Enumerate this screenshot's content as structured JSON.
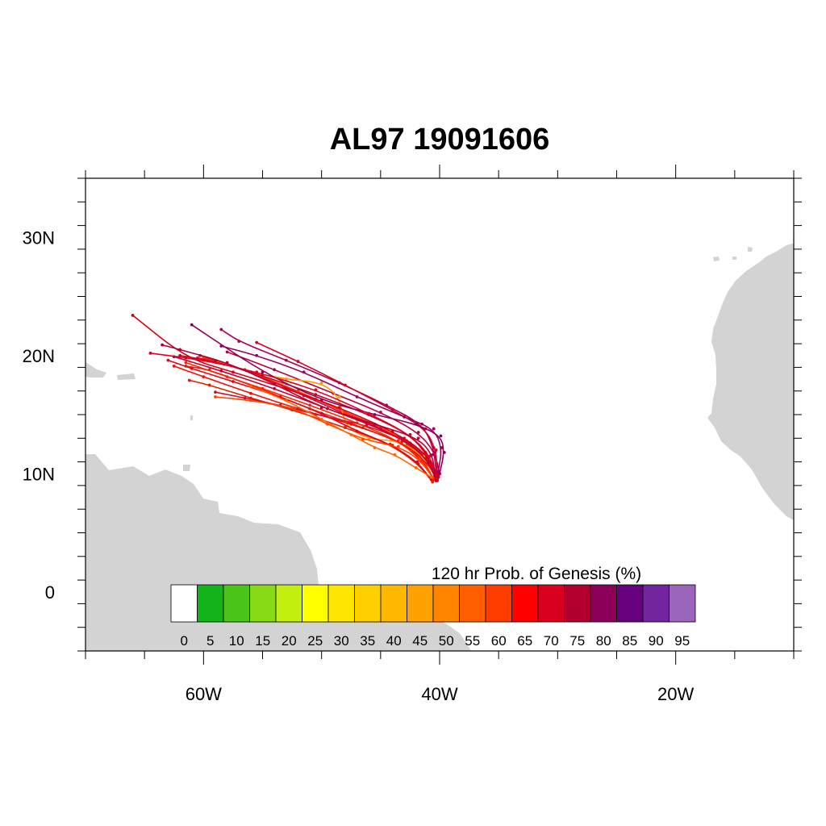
{
  "title": "AL97 19091606",
  "map": {
    "lon_range": [
      -70,
      -10
    ],
    "lat_range": [
      -5,
      35
    ],
    "x_ticks": [
      {
        "lon": -60,
        "label": "60W"
      },
      {
        "lon": -40,
        "label": "40W"
      },
      {
        "lon": -20,
        "label": "20W"
      }
    ],
    "y_ticks": [
      {
        "lat": 30,
        "label": "30N"
      },
      {
        "lat": 20,
        "label": "20N"
      },
      {
        "lat": 10,
        "label": "10N"
      },
      {
        "lat": 0,
        "label": "0"
      }
    ],
    "land_color": "#d3d3d3",
    "ocean_color": "#ffffff"
  },
  "colorbar": {
    "title": "120 hr Prob. of Genesis (%)",
    "labels": [
      "0",
      "5",
      "10",
      "15",
      "20",
      "25",
      "30",
      "35",
      "40",
      "45",
      "50",
      "55",
      "60",
      "65",
      "70",
      "75",
      "80",
      "85",
      "90",
      "95"
    ],
    "colors": [
      "#ffffff",
      "#12b41a",
      "#4cc51a",
      "#88d916",
      "#c2ee10",
      "#ffff00",
      "#ffe600",
      "#ffd000",
      "#ffb800",
      "#ffa200",
      "#ff8400",
      "#ff5f00",
      "#ff3c00",
      "#ff0000",
      "#d9001f",
      "#b2002e",
      "#8c005a",
      "#66007f",
      "#72259f",
      "#9966bb"
    ]
  },
  "tracks": [
    {
      "color": "#dd1122",
      "points": [
        [
          -40.3,
          9.6
        ],
        [
          -40.8,
          11.0
        ],
        [
          -42.5,
          12.6
        ],
        [
          -46,
          14.3
        ],
        [
          -50.5,
          16.3
        ],
        [
          -55,
          18.2
        ],
        [
          -58.5,
          19.4
        ],
        [
          -60.5,
          19.8
        ]
      ]
    },
    {
      "color": "#cc0033",
      "points": [
        [
          -40.1,
          9.8
        ],
        [
          -41.0,
          11.3
        ],
        [
          -43.0,
          13.0
        ],
        [
          -47,
          14.6
        ],
        [
          -51.5,
          16.6
        ],
        [
          -56,
          18.6
        ],
        [
          -60.3,
          20.0
        ]
      ]
    },
    {
      "color": "#ee2211",
      "points": [
        [
          -40.5,
          9.5
        ],
        [
          -41.2,
          10.8
        ],
        [
          -42.8,
          12.4
        ],
        [
          -46.5,
          13.9
        ],
        [
          -51,
          15.5
        ],
        [
          -55.5,
          17.3
        ],
        [
          -59.5,
          18.8
        ],
        [
          -61.5,
          19.1
        ]
      ]
    },
    {
      "color": "#ff3300",
      "points": [
        [
          -40.6,
          9.7
        ],
        [
          -41.6,
          11.6
        ],
        [
          -44,
          13.5
        ],
        [
          -48,
          15.2
        ],
        [
          -52,
          17.0
        ],
        [
          -56.5,
          18.8
        ],
        [
          -60,
          19.8
        ]
      ]
    },
    {
      "color": "#bb0040",
      "points": [
        [
          -40.0,
          10.0
        ],
        [
          -40.4,
          11.8
        ],
        [
          -41.8,
          13.5
        ],
        [
          -45,
          15.2
        ],
        [
          -49,
          16.8
        ],
        [
          -54,
          18.8
        ],
        [
          -58,
          20.3
        ]
      ]
    },
    {
      "color": "#aa0055",
      "points": [
        [
          -40.3,
          10.2
        ],
        [
          -40.5,
          12.2
        ],
        [
          -41.5,
          14.2
        ],
        [
          -44.5,
          15.8
        ],
        [
          -48.5,
          17.7
        ],
        [
          -53,
          19.6
        ],
        [
          -57,
          21.2
        ],
        [
          -58.5,
          22.2
        ]
      ]
    },
    {
      "color": "#d9001f",
      "points": [
        [
          -40.2,
          10.0
        ],
        [
          -40.3,
          12.0
        ],
        [
          -41.2,
          13.8
        ],
        [
          -44,
          15.4
        ],
        [
          -48,
          17.5
        ],
        [
          -52,
          19.5
        ],
        [
          -55.5,
          21.1
        ]
      ]
    },
    {
      "color": "#ff9900",
      "points": [
        [
          -40.4,
          9.8
        ],
        [
          -41.3,
          11.5
        ],
        [
          -43.5,
          12.8
        ],
        [
          -46,
          12.9
        ],
        [
          -48,
          14.0
        ],
        [
          -48.5,
          16.5
        ],
        [
          -50,
          17.7
        ],
        [
          -53,
          18.0
        ],
        [
          -56,
          18.6
        ],
        [
          -59,
          19.5
        ]
      ]
    },
    {
      "color": "#ee1100",
      "points": [
        [
          -40.2,
          9.4
        ],
        [
          -41.0,
          10.9
        ],
        [
          -43.2,
          12.7
        ],
        [
          -47.5,
          14.2
        ],
        [
          -52,
          15.5
        ],
        [
          -56,
          16.8
        ],
        [
          -60,
          18.2
        ],
        [
          -62.5,
          19.1
        ]
      ]
    },
    {
      "color": "#cc0022",
      "points": [
        [
          -40.4,
          9.6
        ],
        [
          -40.9,
          11.4
        ],
        [
          -42.5,
          13.3
        ],
        [
          -46,
          15.0
        ],
        [
          -50.5,
          16.7
        ],
        [
          -55,
          18.3
        ],
        [
          -59,
          19.5
        ],
        [
          -62,
          20.0
        ]
      ]
    },
    {
      "color": "#dd2200",
      "points": [
        [
          -40.6,
          9.3
        ],
        [
          -41.8,
          10.8
        ],
        [
          -44.2,
          12.5
        ],
        [
          -48,
          13.9
        ],
        [
          -52.5,
          15.4
        ],
        [
          -56,
          16.4
        ],
        [
          -59.5,
          17.5
        ],
        [
          -61.2,
          17.9
        ]
      ]
    },
    {
      "color": "#990066",
      "points": [
        [
          -40.1,
          10.2
        ],
        [
          -39.8,
          12.2
        ],
        [
          -40.5,
          13.8
        ],
        [
          -43,
          14.8
        ],
        [
          -47,
          16.5
        ],
        [
          -51.5,
          18.6
        ],
        [
          -55.5,
          20.0
        ],
        [
          -58.5,
          20.8
        ]
      ]
    },
    {
      "color": "#e6001a",
      "points": [
        [
          -40.7,
          9.5
        ],
        [
          -41.9,
          11.0
        ],
        [
          -44,
          12.4
        ],
        [
          -47,
          13.6
        ],
        [
          -50,
          15.1
        ],
        [
          -53.5,
          16.5
        ],
        [
          -57.5,
          17.8
        ],
        [
          -61,
          18.9
        ],
        [
          -63,
          19.6
        ]
      ]
    },
    {
      "color": "#cc1133",
      "points": [
        [
          -40.3,
          9.7
        ],
        [
          -41.1,
          11.2
        ],
        [
          -42.8,
          12.8
        ],
        [
          -46.2,
          14.1
        ],
        [
          -50.5,
          15.0
        ],
        [
          -53.5,
          15.8
        ],
        [
          -56.5,
          16.4
        ],
        [
          -59,
          16.9
        ]
      ]
    },
    {
      "color": "#8c005a",
      "points": [
        [
          -40.0,
          10.0
        ],
        [
          -39.6,
          11.8
        ],
        [
          -39.9,
          13.2
        ],
        [
          -42,
          14.2
        ],
        [
          -45.5,
          15.0
        ],
        [
          -50,
          16.2
        ],
        [
          -55,
          18.6
        ],
        [
          -61,
          22.6
        ]
      ]
    },
    {
      "color": "#ff2200",
      "points": [
        [
          -40.5,
          9.6
        ],
        [
          -41.5,
          11.1
        ],
        [
          -43.5,
          12.8
        ],
        [
          -47,
          14.3
        ],
        [
          -51,
          15.8
        ],
        [
          -55,
          17.2
        ],
        [
          -58,
          18.2
        ],
        [
          -61.5,
          19.4
        ]
      ]
    },
    {
      "color": "#e2001f",
      "points": [
        [
          -40.2,
          9.5
        ],
        [
          -40.8,
          11.5
        ],
        [
          -42.5,
          13.3
        ],
        [
          -46,
          15.1
        ],
        [
          -50.5,
          17.1
        ],
        [
          -55.5,
          18.6
        ],
        [
          -60,
          19.6
        ],
        [
          -64.5,
          20.2
        ]
      ]
    },
    {
      "color": "#d40010",
      "points": [
        [
          -40.1,
          9.7
        ],
        [
          -41.2,
          11.8
        ],
        [
          -44,
          13.6
        ],
        [
          -48.5,
          15.6
        ],
        [
          -53,
          17.2
        ],
        [
          -57.5,
          18.6
        ],
        [
          -61.5,
          19.8
        ],
        [
          -66,
          23.4
        ]
      ]
    },
    {
      "color": "#b3003b",
      "points": [
        [
          -40.4,
          9.9
        ],
        [
          -40.6,
          11.6
        ],
        [
          -41.8,
          13.0
        ],
        [
          -45.5,
          14.2
        ],
        [
          -50,
          15.6
        ],
        [
          -54,
          17.6
        ],
        [
          -58,
          19.4
        ],
        [
          -62,
          20.5
        ],
        [
          -63.5,
          20.9
        ]
      ]
    },
    {
      "color": "#ff4400",
      "points": [
        [
          -40.6,
          9.7
        ],
        [
          -41.7,
          11.2
        ],
        [
          -43.5,
          12.3
        ],
        [
          -46.5,
          12.9
        ],
        [
          -49.5,
          14.2
        ],
        [
          -52.5,
          15.6
        ],
        [
          -56,
          16.2
        ],
        [
          -59,
          16.5
        ]
      ]
    },
    {
      "color": "#c20030",
      "points": [
        [
          -40.3,
          9.4
        ],
        [
          -40.9,
          11.0
        ],
        [
          -42.5,
          12.5
        ],
        [
          -45,
          13.8
        ],
        [
          -49.5,
          15.5
        ],
        [
          -54,
          17.2
        ],
        [
          -58.5,
          18.7
        ],
        [
          -62.5,
          19.9
        ]
      ]
    },
    {
      "color": "#ff6600",
      "points": [
        [
          -40.7,
          9.7
        ],
        [
          -42.0,
          10.5
        ],
        [
          -43.8,
          11.6
        ],
        [
          -45.5,
          12.2
        ],
        [
          -47.5,
          13.3
        ],
        [
          -50,
          14.6
        ],
        [
          -53,
          16.2
        ],
        [
          -56,
          17.4
        ]
      ]
    }
  ]
}
